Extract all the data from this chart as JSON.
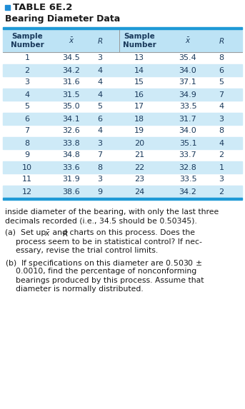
{
  "title_square_color": "#1F8DD6",
  "title_text": "TABLE 6E.2",
  "subtitle_text": "Bearing Diameter Data",
  "header_bg_color": "#BDE3F5",
  "row_alt_color": "#CEEAF7",
  "row_plain_color": "#FFFFFF",
  "border_color": "#1F9AD6",
  "text_color": "#1a3a5c",
  "rows": [
    [
      1,
      "34.5",
      3,
      13,
      "35.4",
      8
    ],
    [
      2,
      "34.2",
      4,
      14,
      "34.0",
      6
    ],
    [
      3,
      "31.6",
      4,
      15,
      "37.1",
      5
    ],
    [
      4,
      "31.5",
      4,
      16,
      "34.9",
      7
    ],
    [
      5,
      "35.0",
      5,
      17,
      "33.5",
      4
    ],
    [
      6,
      "34.1",
      6,
      18,
      "31.7",
      3
    ],
    [
      7,
      "32.6",
      4,
      19,
      "34.0",
      8
    ],
    [
      8,
      "33.8",
      3,
      20,
      "35.1",
      4
    ],
    [
      9,
      "34.8",
      7,
      21,
      "33.7",
      2
    ],
    [
      10,
      "33.6",
      8,
      22,
      "32.8",
      1
    ],
    [
      11,
      "31.9",
      3,
      23,
      "33.5",
      3
    ],
    [
      12,
      "38.6",
      9,
      24,
      "34.2",
      2
    ]
  ]
}
